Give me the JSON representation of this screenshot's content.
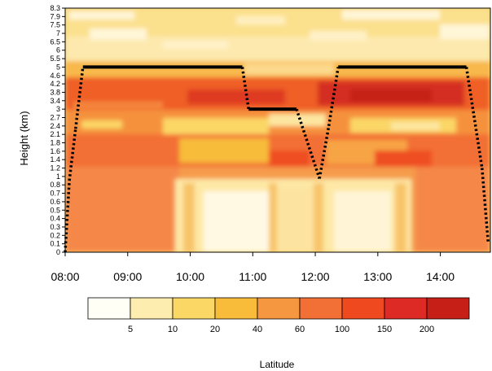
{
  "chart_data": {
    "type": "heatmap",
    "ylabel": "Height (km)",
    "y_tick_labels": [
      "0",
      "0.1",
      "0.2",
      "0.3",
      "0.4",
      "0.5",
      "0.6",
      "0.7",
      "0.8",
      "1",
      "1.2",
      "1.4",
      "1.6",
      "1.8",
      "2.1",
      "2.4",
      "2.7",
      "3",
      "3.4",
      "3.8",
      "4.2",
      "4.6",
      "5",
      "5.5",
      "6",
      "6.5",
      "7",
      "7.5",
      "7.9",
      "8.3"
    ],
    "x_tick_labels": [
      "08:00",
      "09:00",
      "10:00",
      "11:00",
      "12:00",
      "13:00",
      "14:00"
    ],
    "x_ticks_hours": [
      8,
      9,
      10,
      11,
      12,
      13,
      14
    ],
    "xlim_hours": [
      8.0,
      14.8
    ],
    "colorbar": {
      "label": "Latitude",
      "levels": [
        "5",
        "10",
        "20",
        "40",
        "60",
        "100",
        "150",
        "200"
      ],
      "colors": [
        "#fffff5",
        "#fdeeb0",
        "#fbd766",
        "#f8bc3a",
        "#f59740",
        "#f27036",
        "#ef4a1f",
        "#de2a24",
        "#c61f18"
      ]
    },
    "flight_track": [
      {
        "time": "08:00",
        "height_km": 0
      },
      {
        "time": "08:04",
        "height_km": 0.9
      },
      {
        "time": "08:10",
        "height_km": 2.3
      },
      {
        "time": "08:17",
        "height_km": 5
      },
      {
        "time": "10:50",
        "height_km": 5
      },
      {
        "time": "10:56",
        "height_km": 3
      },
      {
        "time": "11:42",
        "height_km": 3
      },
      {
        "time": "12:04",
        "height_km": 0.95
      },
      {
        "time": "12:13",
        "height_km": 2.4
      },
      {
        "time": "12:22",
        "height_km": 5
      },
      {
        "time": "14:25",
        "height_km": 5
      },
      {
        "time": "14:40",
        "height_km": 1.2
      },
      {
        "time": "14:46",
        "height_km": 0.1
      }
    ]
  }
}
